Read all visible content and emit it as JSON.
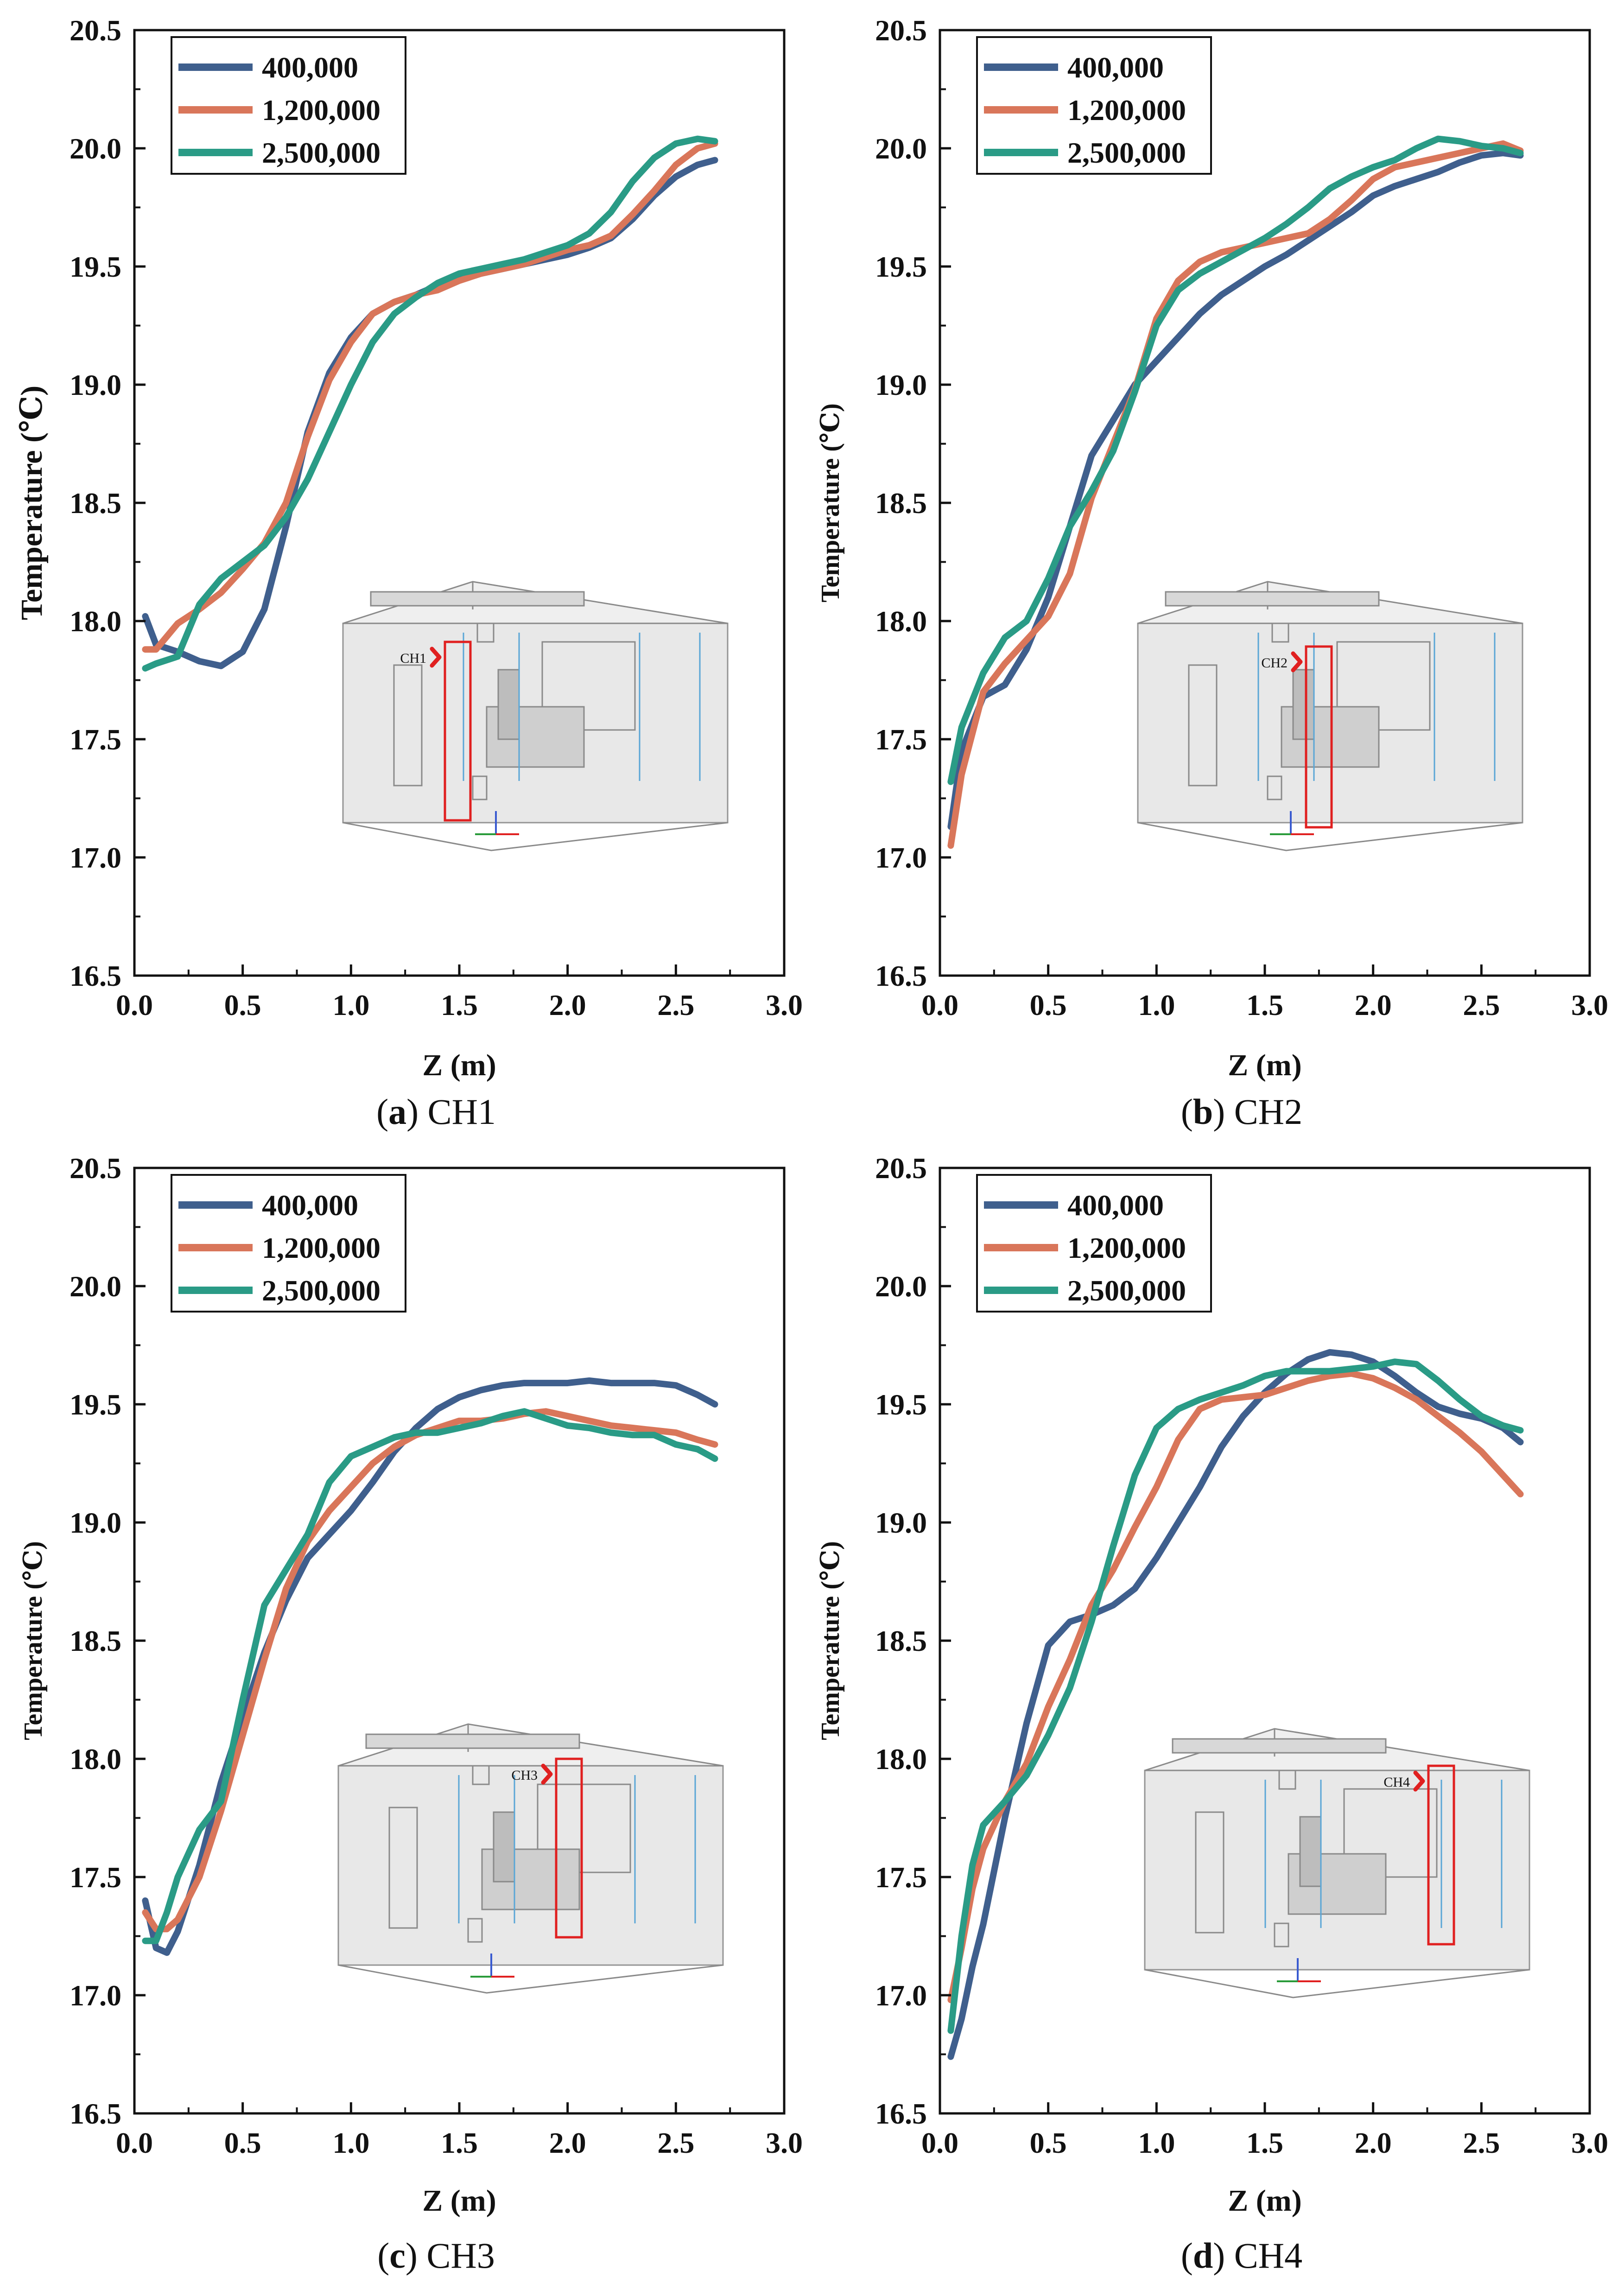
{
  "figure": {
    "colors": {
      "400,000": "#3f5f8d",
      "1,200,000": "#d9765a",
      "2,500,000": "#2a9b86",
      "marker": "#e02020"
    }
  },
  "chart_data": [
    {
      "type": "line",
      "id": "a",
      "caption": {
        "letter": "a",
        "open": "(",
        "close": ")",
        "text": "CH1"
      },
      "title": "",
      "xlabel": "Z (m)",
      "ylabel": "Temperature (℃)",
      "xlim": [
        0.0,
        3.0
      ],
      "ylim": [
        16.5,
        20.5
      ],
      "xticks": [
        "0.0",
        "0.5",
        "1.0",
        "1.5",
        "2.0",
        "2.5",
        "3.0"
      ],
      "yticks": [
        "16.5",
        "17.0",
        "17.5",
        "18.0",
        "18.5",
        "19.0",
        "19.5",
        "20.0",
        "20.5"
      ],
      "legend": {
        "position": "top-left",
        "entries": [
          "400,000",
          "1,200,000",
          "2,500,000"
        ]
      },
      "inset": {
        "probe": "CH1"
      },
      "series": [
        {
          "name": "400,000",
          "x": [
            0.05,
            0.1,
            0.2,
            0.3,
            0.4,
            0.5,
            0.6,
            0.7,
            0.8,
            0.9,
            1.0,
            1.1,
            1.2,
            1.3,
            1.4,
            1.5,
            1.6,
            1.7,
            1.8,
            1.9,
            2.0,
            2.1,
            2.2,
            2.3,
            2.4,
            2.5,
            2.6,
            2.68
          ],
          "y": [
            18.02,
            17.9,
            17.87,
            17.83,
            17.81,
            17.87,
            18.05,
            18.4,
            18.8,
            19.05,
            19.2,
            19.3,
            19.35,
            19.38,
            19.42,
            19.45,
            19.47,
            19.49,
            19.51,
            19.53,
            19.55,
            19.58,
            19.62,
            19.7,
            19.8,
            19.88,
            19.93,
            19.95
          ]
        },
        {
          "name": "1,200,000",
          "x": [
            0.05,
            0.1,
            0.2,
            0.3,
            0.4,
            0.5,
            0.6,
            0.7,
            0.8,
            0.9,
            1.0,
            1.1,
            1.2,
            1.3,
            1.4,
            1.5,
            1.6,
            1.7,
            1.8,
            1.9,
            2.0,
            2.1,
            2.2,
            2.3,
            2.4,
            2.5,
            2.6,
            2.68
          ],
          "y": [
            17.88,
            17.88,
            17.99,
            18.05,
            18.12,
            18.22,
            18.33,
            18.5,
            18.78,
            19.02,
            19.18,
            19.3,
            19.35,
            19.38,
            19.4,
            19.44,
            19.47,
            19.49,
            19.51,
            19.54,
            19.57,
            19.59,
            19.63,
            19.72,
            19.82,
            19.93,
            20.0,
            20.02
          ]
        },
        {
          "name": "2,500,000",
          "x": [
            0.05,
            0.1,
            0.2,
            0.3,
            0.4,
            0.5,
            0.6,
            0.7,
            0.8,
            0.9,
            1.0,
            1.1,
            1.2,
            1.3,
            1.4,
            1.5,
            1.6,
            1.7,
            1.8,
            1.9,
            2.0,
            2.1,
            2.2,
            2.3,
            2.4,
            2.5,
            2.6,
            2.68
          ],
          "y": [
            17.8,
            17.82,
            17.85,
            18.07,
            18.18,
            18.25,
            18.32,
            18.44,
            18.6,
            18.8,
            19.0,
            19.18,
            19.3,
            19.37,
            19.43,
            19.47,
            19.49,
            19.51,
            19.53,
            19.56,
            19.59,
            19.64,
            19.73,
            19.86,
            19.96,
            20.02,
            20.04,
            20.03
          ]
        }
      ]
    },
    {
      "type": "line",
      "id": "b",
      "caption": {
        "letter": "b",
        "open": "(",
        "close": ")",
        "text": "CH2"
      },
      "title": "",
      "xlabel": "Z (m)",
      "ylabel": "Temperature (℃)",
      "xlim": [
        0.0,
        3.0
      ],
      "ylim": [
        16.5,
        20.5
      ],
      "xticks": [
        "0.0",
        "0.5",
        "1.0",
        "1.5",
        "2.0",
        "2.5",
        "3.0"
      ],
      "yticks": [
        "16.5",
        "17.0",
        "17.5",
        "18.0",
        "18.5",
        "19.0",
        "19.5",
        "20.0",
        "20.5"
      ],
      "legend": {
        "position": "top-left",
        "entries": [
          "400,000",
          "1,200,000",
          "2,500,000"
        ]
      },
      "inset": {
        "probe": "CH2"
      },
      "series": [
        {
          "name": "400,000",
          "x": [
            0.05,
            0.1,
            0.2,
            0.3,
            0.4,
            0.5,
            0.6,
            0.7,
            0.8,
            0.9,
            1.0,
            1.1,
            1.2,
            1.3,
            1.4,
            1.5,
            1.6,
            1.7,
            1.8,
            1.9,
            2.0,
            2.1,
            2.2,
            2.3,
            2.4,
            2.5,
            2.6,
            2.68
          ],
          "y": [
            17.13,
            17.45,
            17.68,
            17.73,
            17.88,
            18.1,
            18.4,
            18.7,
            18.85,
            19.0,
            19.1,
            19.2,
            19.3,
            19.38,
            19.44,
            19.5,
            19.55,
            19.61,
            19.67,
            19.73,
            19.8,
            19.84,
            19.87,
            19.9,
            19.94,
            19.97,
            19.98,
            19.97
          ]
        },
        {
          "name": "1,200,000",
          "x": [
            0.05,
            0.1,
            0.2,
            0.3,
            0.4,
            0.5,
            0.6,
            0.7,
            0.8,
            0.9,
            1.0,
            1.1,
            1.2,
            1.3,
            1.4,
            1.5,
            1.6,
            1.7,
            1.8,
            1.9,
            2.0,
            2.1,
            2.2,
            2.3,
            2.4,
            2.5,
            2.6,
            2.68
          ],
          "y": [
            17.05,
            17.35,
            17.7,
            17.82,
            17.92,
            18.02,
            18.2,
            18.52,
            18.75,
            18.98,
            19.28,
            19.44,
            19.52,
            19.56,
            19.58,
            19.6,
            19.62,
            19.64,
            19.7,
            19.78,
            19.87,
            19.92,
            19.94,
            19.96,
            19.98,
            20.0,
            20.02,
            19.99
          ]
        },
        {
          "name": "2,500,000",
          "x": [
            0.05,
            0.1,
            0.2,
            0.3,
            0.4,
            0.5,
            0.6,
            0.7,
            0.8,
            0.9,
            1.0,
            1.1,
            1.2,
            1.3,
            1.4,
            1.5,
            1.6,
            1.7,
            1.8,
            1.9,
            2.0,
            2.1,
            2.2,
            2.3,
            2.4,
            2.5,
            2.6,
            2.68
          ],
          "y": [
            17.32,
            17.55,
            17.78,
            17.93,
            18.0,
            18.18,
            18.4,
            18.55,
            18.72,
            18.97,
            19.25,
            19.4,
            19.47,
            19.52,
            19.57,
            19.62,
            19.68,
            19.75,
            19.83,
            19.88,
            19.92,
            19.95,
            20.0,
            20.04,
            20.03,
            20.01,
            20.0,
            19.98
          ]
        }
      ]
    },
    {
      "type": "line",
      "id": "c",
      "caption": {
        "letter": "c",
        "open": "(",
        "close": ")",
        "text": "CH3"
      },
      "title": "",
      "xlabel": "Z (m)",
      "ylabel": "Temperature (℃)",
      "xlim": [
        0.0,
        3.0
      ],
      "ylim": [
        16.5,
        20.5
      ],
      "xticks": [
        "0.0",
        "0.5",
        "1.0",
        "1.5",
        "2.0",
        "2.5",
        "3.0"
      ],
      "yticks": [
        "16.5",
        "17.0",
        "17.5",
        "18.0",
        "18.5",
        "19.0",
        "19.5",
        "20.0",
        "20.5"
      ],
      "legend": {
        "position": "top-left",
        "entries": [
          "400,000",
          "1,200,000",
          "2,500,000"
        ]
      },
      "inset": {
        "probe": "CH3"
      },
      "series": [
        {
          "name": "400,000",
          "x": [
            0.05,
            0.1,
            0.15,
            0.2,
            0.3,
            0.4,
            0.5,
            0.6,
            0.7,
            0.8,
            0.9,
            1.0,
            1.1,
            1.2,
            1.3,
            1.4,
            1.5,
            1.6,
            1.7,
            1.8,
            1.9,
            2.0,
            2.1,
            2.2,
            2.3,
            2.4,
            2.5,
            2.6,
            2.68
          ],
          "y": [
            17.4,
            17.2,
            17.18,
            17.27,
            17.55,
            17.9,
            18.18,
            18.45,
            18.67,
            18.85,
            18.95,
            19.05,
            19.17,
            19.3,
            19.4,
            19.48,
            19.53,
            19.56,
            19.58,
            19.59,
            19.59,
            19.59,
            19.6,
            19.59,
            19.59,
            19.59,
            19.58,
            19.54,
            19.5
          ]
        },
        {
          "name": "1,200,000",
          "x": [
            0.05,
            0.1,
            0.15,
            0.2,
            0.3,
            0.4,
            0.5,
            0.6,
            0.7,
            0.8,
            0.9,
            1.0,
            1.1,
            1.2,
            1.3,
            1.4,
            1.5,
            1.6,
            1.7,
            1.8,
            1.9,
            2.0,
            2.1,
            2.2,
            2.3,
            2.4,
            2.5,
            2.6,
            2.68
          ],
          "y": [
            17.35,
            17.28,
            17.28,
            17.32,
            17.5,
            17.78,
            18.1,
            18.42,
            18.72,
            18.92,
            19.05,
            19.15,
            19.25,
            19.32,
            19.37,
            19.4,
            19.43,
            19.43,
            19.44,
            19.46,
            19.47,
            19.45,
            19.43,
            19.41,
            19.4,
            19.39,
            19.38,
            19.35,
            19.33
          ]
        },
        {
          "name": "2,500,000",
          "x": [
            0.05,
            0.1,
            0.15,
            0.2,
            0.3,
            0.4,
            0.5,
            0.6,
            0.7,
            0.8,
            0.9,
            1.0,
            1.1,
            1.2,
            1.3,
            1.4,
            1.5,
            1.6,
            1.7,
            1.8,
            1.9,
            2.0,
            2.1,
            2.2,
            2.3,
            2.4,
            2.5,
            2.6,
            2.68
          ],
          "y": [
            17.23,
            17.23,
            17.35,
            17.5,
            17.7,
            17.82,
            18.25,
            18.65,
            18.8,
            18.95,
            19.17,
            19.28,
            19.32,
            19.36,
            19.38,
            19.38,
            19.4,
            19.42,
            19.45,
            19.47,
            19.44,
            19.41,
            19.4,
            19.38,
            19.37,
            19.37,
            19.33,
            19.31,
            19.27
          ]
        }
      ]
    },
    {
      "type": "line",
      "id": "d",
      "caption": {
        "letter": "d",
        "open": "(",
        "close": ")",
        "text": "CH4"
      },
      "title": "",
      "xlabel": "Z (m)",
      "ylabel": "Temperature (℃)",
      "xlim": [
        0.0,
        3.0
      ],
      "ylim": [
        16.5,
        20.5
      ],
      "xticks": [
        "0.0",
        "0.5",
        "1.0",
        "1.5",
        "2.0",
        "2.5",
        "3.0"
      ],
      "yticks": [
        "16.5",
        "17.0",
        "17.5",
        "18.0",
        "18.5",
        "19.0",
        "19.5",
        "20.0",
        "20.5"
      ],
      "legend": {
        "position": "top-left",
        "entries": [
          "400,000",
          "1,200,000",
          "2,500,000"
        ]
      },
      "inset": {
        "probe": "CH4"
      },
      "series": [
        {
          "name": "400,000",
          "x": [
            0.05,
            0.1,
            0.15,
            0.2,
            0.3,
            0.4,
            0.5,
            0.6,
            0.7,
            0.8,
            0.9,
            1.0,
            1.1,
            1.2,
            1.3,
            1.4,
            1.5,
            1.6,
            1.7,
            1.8,
            1.9,
            2.0,
            2.1,
            2.2,
            2.3,
            2.4,
            2.5,
            2.6,
            2.68
          ],
          "y": [
            16.74,
            16.9,
            17.12,
            17.3,
            17.75,
            18.15,
            18.48,
            18.58,
            18.61,
            18.65,
            18.72,
            18.85,
            19.0,
            19.15,
            19.32,
            19.45,
            19.55,
            19.63,
            19.69,
            19.72,
            19.71,
            19.68,
            19.62,
            19.55,
            19.49,
            19.46,
            19.44,
            19.4,
            19.34
          ]
        },
        {
          "name": "1,200,000",
          "x": [
            0.05,
            0.1,
            0.15,
            0.2,
            0.3,
            0.4,
            0.5,
            0.6,
            0.7,
            0.8,
            0.9,
            1.0,
            1.1,
            1.2,
            1.3,
            1.4,
            1.5,
            1.6,
            1.7,
            1.8,
            1.9,
            2.0,
            2.1,
            2.2,
            2.3,
            2.4,
            2.5,
            2.6,
            2.68
          ],
          "y": [
            16.98,
            17.2,
            17.45,
            17.62,
            17.82,
            17.98,
            18.22,
            18.42,
            18.65,
            18.8,
            18.98,
            19.15,
            19.35,
            19.48,
            19.52,
            19.53,
            19.54,
            19.57,
            19.6,
            19.62,
            19.63,
            19.61,
            19.57,
            19.52,
            19.45,
            19.38,
            19.3,
            19.2,
            19.12
          ]
        },
        {
          "name": "2,500,000",
          "x": [
            0.05,
            0.1,
            0.15,
            0.2,
            0.3,
            0.4,
            0.5,
            0.6,
            0.7,
            0.8,
            0.9,
            1.0,
            1.1,
            1.2,
            1.3,
            1.4,
            1.5,
            1.6,
            1.7,
            1.8,
            1.9,
            2.0,
            2.1,
            2.2,
            2.3,
            2.4,
            2.5,
            2.6,
            2.68
          ],
          "y": [
            16.85,
            17.25,
            17.55,
            17.72,
            17.82,
            17.93,
            18.1,
            18.3,
            18.58,
            18.9,
            19.2,
            19.4,
            19.48,
            19.52,
            19.55,
            19.58,
            19.62,
            19.64,
            19.64,
            19.64,
            19.65,
            19.66,
            19.68,
            19.67,
            19.6,
            19.52,
            19.45,
            19.41,
            19.39
          ]
        }
      ]
    }
  ]
}
